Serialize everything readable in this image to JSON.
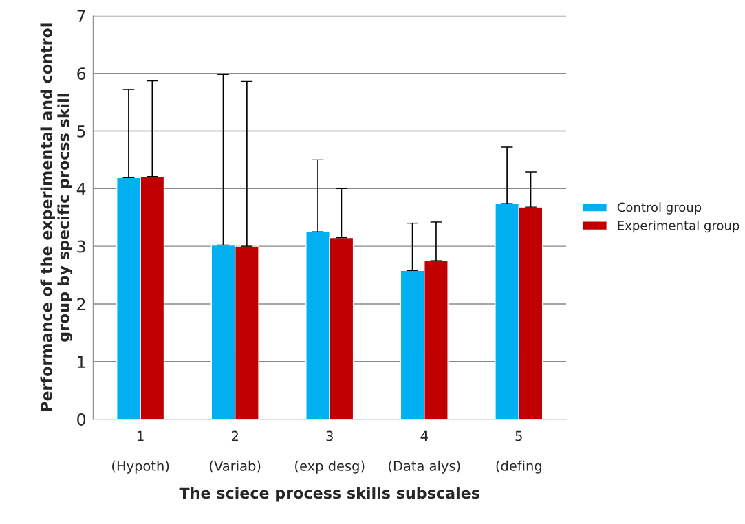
{
  "chart_data": {
    "type": "bar",
    "xlabel": "The sciece process skills subscales",
    "ylabel": "Performance of the experimental and control group by specific procss skill",
    "categories": [
      "1\n\n(Hypoth)",
      "2\n\n(Variab)",
      "3\n\n(exp desg)",
      "4\n\n(Data alys)",
      "5\n\n(defing"
    ],
    "series": [
      {
        "name": "Control group",
        "color": "#00b0f0",
        "values": [
          4.19,
          3.02,
          3.25,
          2.58,
          3.74
        ],
        "errors": [
          [
            4.19,
            5.72
          ],
          [
            3.02,
            5.98
          ],
          [
            3.25,
            4.5
          ],
          [
            2.58,
            3.4
          ],
          [
            3.74,
            4.72
          ]
        ]
      },
      {
        "name": "Experimental group",
        "color": "#c00000",
        "values": [
          4.21,
          3.0,
          3.15,
          2.75,
          3.68
        ],
        "errors": [
          [
            4.21,
            5.87
          ],
          [
            3.0,
            5.86
          ],
          [
            3.15,
            4.0
          ],
          [
            2.75,
            3.42
          ],
          [
            3.68,
            4.29
          ]
        ]
      }
    ],
    "ylim": [
      0,
      7
    ],
    "yticks": [
      0,
      1,
      2,
      3,
      4,
      5,
      6,
      7
    ],
    "grid": "y",
    "legend": "right"
  }
}
